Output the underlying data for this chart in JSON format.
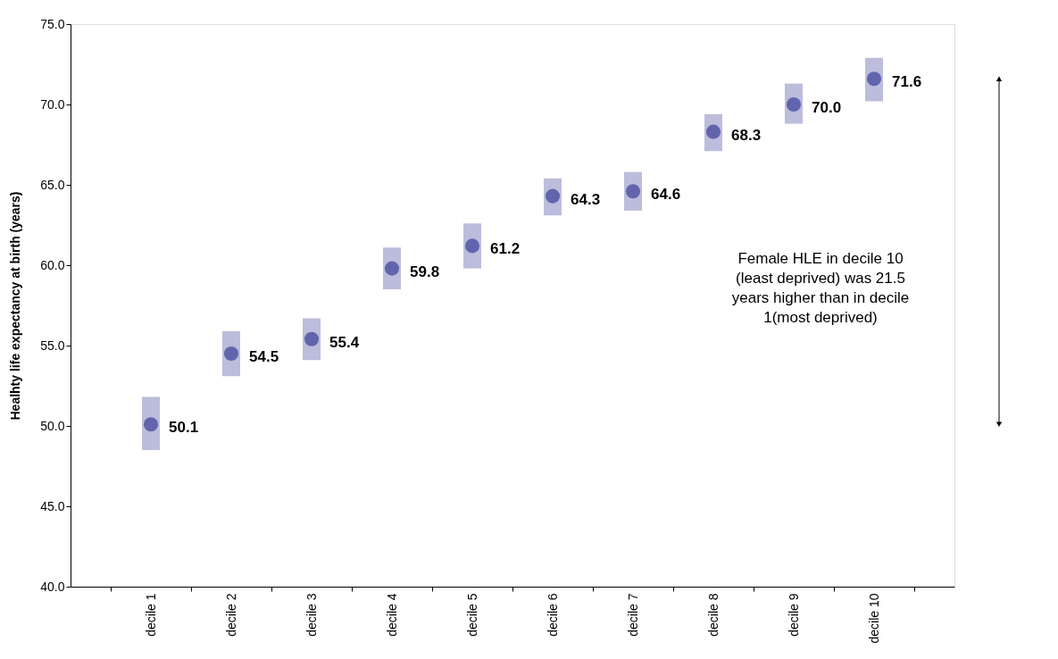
{
  "chart_data": {
    "type": "scatter",
    "ylabel": "Healhty life expectancy at birth (years)",
    "categories": [
      "decile 1",
      "decile 2",
      "decile 3",
      "decile 4",
      "decile 5",
      "decile 6",
      "decile 7",
      "decile 8",
      "decile 9",
      "decile 10"
    ],
    "series": [
      {
        "color": "#6264ad",
        "values": [
          50.1,
          54.5,
          55.4,
          59.8,
          61.2,
          64.3,
          64.6,
          68.3,
          70.0,
          71.6
        ],
        "value_labels": [
          "50.1",
          "54.5",
          "55.4",
          "59.8",
          "61.2",
          "64.3",
          "64.6",
          "68.3",
          "70.0",
          "71.6"
        ],
        "errors": [
          [
            48.5,
            51.8
          ],
          [
            53.1,
            55.9
          ],
          [
            54.1,
            56.7
          ],
          [
            58.5,
            61.1
          ],
          [
            59.8,
            62.6
          ],
          [
            63.1,
            65.4
          ],
          [
            63.4,
            65.8
          ],
          [
            67.1,
            69.4
          ],
          [
            68.8,
            71.3
          ],
          [
            70.2,
            72.9
          ]
        ]
      }
    ],
    "ylim": [
      40,
      75
    ],
    "yticks": [
      {
        "value": 40,
        "label": "40.0"
      },
      {
        "value": 45,
        "label": "45.0"
      },
      {
        "value": 50,
        "label": "50.0"
      },
      {
        "value": 55,
        "label": "55.0"
      },
      {
        "value": 60,
        "label": "60.0"
      },
      {
        "value": 65,
        "label": "65.0"
      },
      {
        "value": 70,
        "label": "70.0"
      },
      {
        "value": 75,
        "label": "75.0"
      }
    ],
    "marker": "circle",
    "grid": false,
    "annotations": [
      "Female HLE in decile 10 (least deprived) was 21.5 years higher than in decile 1(most deprived)"
    ]
  }
}
